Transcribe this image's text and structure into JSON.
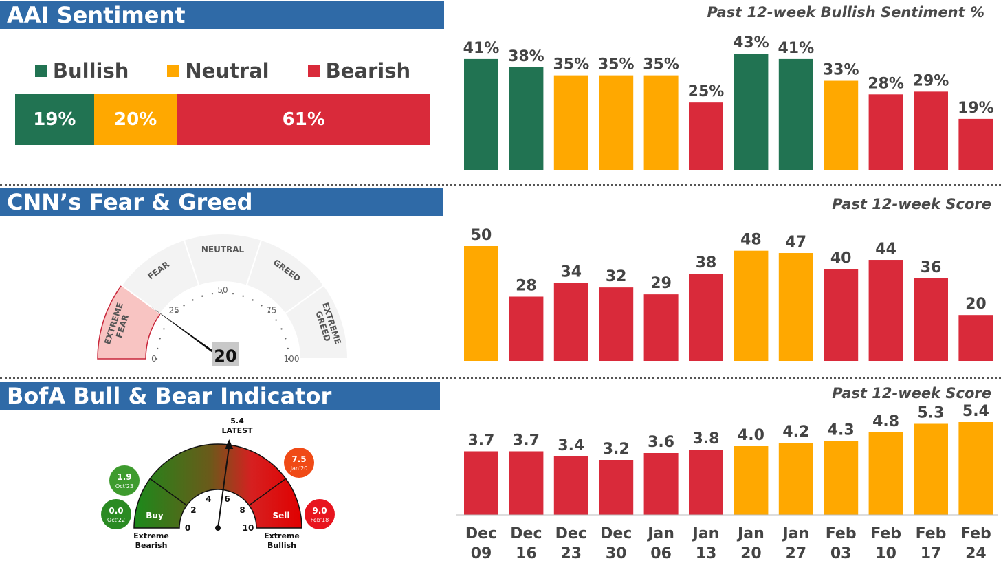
{
  "colors": {
    "bullish": "#217352",
    "neutral": "#ffa800",
    "bearish": "#d92a3a",
    "header": "#2f6aa7"
  },
  "aai": {
    "title": "AAI Sentiment",
    "subtitle": "Past 12-week Bullish Sentiment %",
    "legend": [
      {
        "label": "Bullish",
        "key": "bullish"
      },
      {
        "label": "Neutral",
        "key": "neutral"
      },
      {
        "label": "Bearish",
        "key": "bearish"
      }
    ],
    "stack": [
      {
        "label": "19%",
        "value": 19,
        "key": "bullish"
      },
      {
        "label": "20%",
        "value": 20,
        "key": "neutral"
      },
      {
        "label": "61%",
        "value": 61,
        "key": "bearish"
      }
    ]
  },
  "cnn": {
    "title": "CNN’s Fear & Greed",
    "subtitle": "Past 12-week Score",
    "gauge": {
      "value": 20,
      "value_label": "20",
      "zones": [
        "EXTREME FEAR",
        "FEAR",
        "NEUTRAL",
        "GREED",
        "EXTREME GREED"
      ],
      "ticks": [
        "0",
        "25",
        "50",
        "75",
        "100"
      ]
    }
  },
  "bofa": {
    "title": "BofA Bull & Bear Indicator",
    "subtitle": "Past 12-week Score",
    "gauge": {
      "value": 5.4,
      "latest_value": "5.4",
      "latest_label": "LATEST",
      "ticks": [
        "0",
        "2",
        "4",
        "6",
        "8",
        "10"
      ],
      "buy_label": "Buy",
      "sell_label": "Sell",
      "left_label_1": "Extreme",
      "left_label_2": "Bearish",
      "right_label_1": "Extreme",
      "right_label_2": "Bullish",
      "bubbles": [
        {
          "value": "1.9",
          "date": "Oct'23",
          "color": "#3e9b2e"
        },
        {
          "value": "0.0",
          "date": "Oct'22",
          "color": "#2a8a22"
        },
        {
          "value": "7.5",
          "date": "Jan'20",
          "color": "#f04a16"
        },
        {
          "value": "9.0",
          "date": "Feb'18",
          "color": "#e8141e"
        }
      ]
    }
  },
  "chart_data": [
    {
      "type": "bar",
      "title": "Past 12-week Bullish Sentiment %",
      "categories": [
        "Dec 09",
        "Dec 16",
        "Dec 23",
        "Dec 30",
        "Jan 06",
        "Jan 13",
        "Jan 20",
        "Jan 27",
        "Feb 03",
        "Feb 10",
        "Feb 17",
        "Feb 24"
      ],
      "values": [
        41,
        38,
        35,
        35,
        35,
        25,
        43,
        41,
        33,
        28,
        29,
        19
      ],
      "labels": [
        "41%",
        "38%",
        "35%",
        "35%",
        "35%",
        "25%",
        "43%",
        "41%",
        "33%",
        "28%",
        "29%",
        "19%"
      ],
      "bar_colors": [
        "bullish",
        "bullish",
        "neutral",
        "neutral",
        "neutral",
        "bearish",
        "bullish",
        "bullish",
        "neutral",
        "bearish",
        "bearish",
        "bearish"
      ],
      "ylim": [
        0,
        43
      ]
    },
    {
      "type": "bar",
      "title": "Past 12-week Score",
      "categories": [
        "Dec 09",
        "Dec 16",
        "Dec 23",
        "Dec 30",
        "Jan 06",
        "Jan 13",
        "Jan 20",
        "Jan 27",
        "Feb 03",
        "Feb 10",
        "Feb 17",
        "Feb 24"
      ],
      "values": [
        50,
        28,
        34,
        32,
        29,
        38,
        48,
        47,
        40,
        44,
        36,
        20
      ],
      "labels": [
        "50",
        "28",
        "34",
        "32",
        "29",
        "38",
        "48",
        "47",
        "40",
        "44",
        "36",
        "20"
      ],
      "bar_colors": [
        "neutral",
        "bearish",
        "bearish",
        "bearish",
        "bearish",
        "bearish",
        "neutral",
        "neutral",
        "bearish",
        "bearish",
        "bearish",
        "bearish"
      ],
      "ylim": [
        0,
        50
      ]
    },
    {
      "type": "bar",
      "title": "Past 12-week Score",
      "categories": [
        "Dec 09",
        "Dec 16",
        "Dec 23",
        "Dec 30",
        "Jan 06",
        "Jan 13",
        "Jan 20",
        "Jan 27",
        "Feb 03",
        "Feb 10",
        "Feb 17",
        "Feb 24"
      ],
      "values": [
        3.7,
        3.7,
        3.4,
        3.2,
        3.6,
        3.8,
        4.0,
        4.2,
        4.3,
        4.8,
        5.3,
        5.4
      ],
      "labels": [
        "3.7",
        "3.7",
        "3.4",
        "3.2",
        "3.6",
        "3.8",
        "4.0",
        "4.2",
        "4.3",
        "4.8",
        "5.3",
        "5.4"
      ],
      "bar_colors": [
        "bearish",
        "bearish",
        "bearish",
        "bearish",
        "bearish",
        "bearish",
        "neutral",
        "neutral",
        "neutral",
        "neutral",
        "neutral",
        "neutral"
      ],
      "ylim": [
        0,
        5.4
      ],
      "x_tick_lines": [
        [
          "Dec",
          "09"
        ],
        [
          "Dec",
          "16"
        ],
        [
          "Dec",
          "23"
        ],
        [
          "Dec",
          "30"
        ],
        [
          "Jan",
          "06"
        ],
        [
          "Jan",
          "13"
        ],
        [
          "Jan",
          "20"
        ],
        [
          "Jan",
          "27"
        ],
        [
          "Feb",
          "03"
        ],
        [
          "Feb",
          "10"
        ],
        [
          "Feb",
          "17"
        ],
        [
          "Feb",
          "24"
        ]
      ]
    }
  ]
}
